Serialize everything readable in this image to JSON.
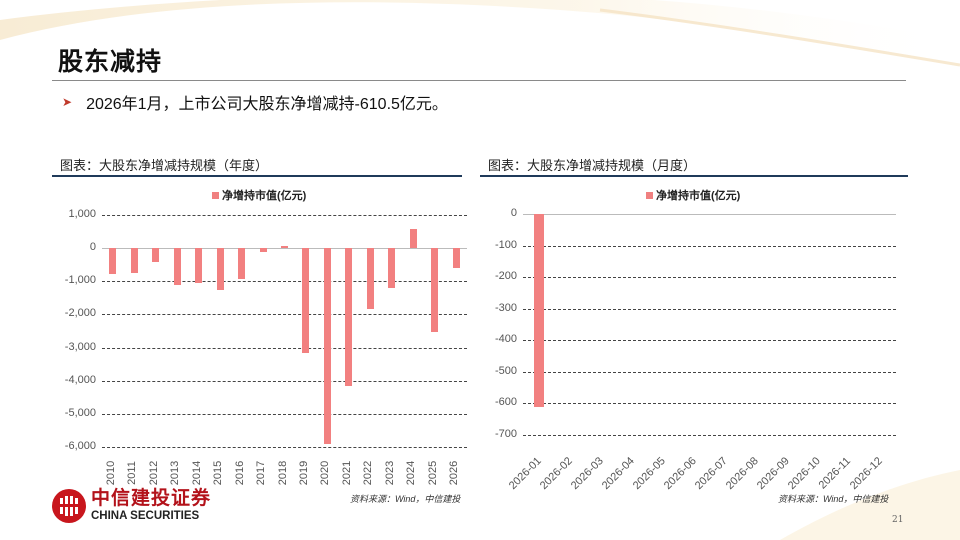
{
  "slide": {
    "title": "股东减持",
    "bullet": "2026年1月，上市公司大股东净增减持-610.5亿元。",
    "page_number": "21"
  },
  "brand": {
    "name_cn": "中信建投证券",
    "name_en": "CHINA SECURITIES",
    "color": "#c8161d"
  },
  "colors": {
    "bar": "#f28080",
    "panel_rule": "#1f3a5a"
  },
  "chart_data": [
    {
      "type": "bar",
      "title": "图表：大股东净增减持规模（年度）",
      "legend": [
        "净增持市值(亿元)"
      ],
      "xlabel": "",
      "ylabel": "",
      "ylim": [
        -6000,
        1000
      ],
      "yticks": [
        1000,
        0,
        -1000,
        -2000,
        -3000,
        -4000,
        -5000,
        -6000
      ],
      "ytick_labels": [
        "1,000",
        "0",
        "-1,000",
        "-2,000",
        "-3,000",
        "-4,000",
        "-5,000",
        "-6,000"
      ],
      "grid": true,
      "categories": [
        "2010",
        "2011",
        "2012",
        "2013",
        "2014",
        "2015",
        "2016",
        "2017",
        "2018",
        "2019",
        "2020",
        "2021",
        "2022",
        "2023",
        "2024",
        "2025",
        "2026"
      ],
      "series": [
        {
          "name": "净增持市值(亿元)",
          "values": [
            -780,
            -760,
            -430,
            -1120,
            -1050,
            -1260,
            -920,
            -130,
            70,
            -3150,
            -5900,
            -4150,
            -1830,
            -1200,
            590,
            -2540,
            -610.5
          ]
        }
      ],
      "source": "资料来源：Wind，中信建投"
    },
    {
      "type": "bar",
      "title": "图表：大股东净增减持规模（月度）",
      "legend": [
        "净增持市值(亿元)"
      ],
      "xlabel": "",
      "ylabel": "",
      "ylim": [
        -700,
        0
      ],
      "yticks": [
        0,
        -100,
        -200,
        -300,
        -400,
        -500,
        -600,
        -700
      ],
      "ytick_labels": [
        "0",
        "-100",
        "-200",
        "-300",
        "-400",
        "-500",
        "-600",
        "-700"
      ],
      "grid": true,
      "categories": [
        "2026-01",
        "2026-02",
        "2026-03",
        "2026-04",
        "2026-05",
        "2026-06",
        "2026-07",
        "2026-08",
        "2026-09",
        "2026-10",
        "2026-11",
        "2026-12"
      ],
      "series": [
        {
          "name": "净增持市值(亿元)",
          "values": [
            -610.5,
            null,
            null,
            null,
            null,
            null,
            null,
            null,
            null,
            null,
            null,
            null
          ]
        }
      ],
      "source": "资料来源：Wind，中信建投"
    }
  ]
}
